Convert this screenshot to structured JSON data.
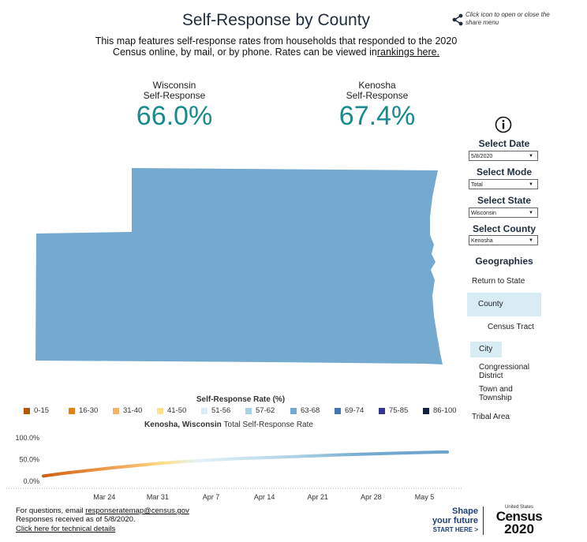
{
  "header": {
    "title": "Self-Response by County",
    "subtitle_text": "This map features self-response rates from households that responded to the 2020 Census online, by mail, or by phone. Rates can be viewed in",
    "rankings_link": "rankings here.",
    "share_note": "Click icon to open or close the share menu"
  },
  "stats": {
    "state": {
      "name": "Wisconsin",
      "label": "Self-Response",
      "value": "66.0%"
    },
    "county": {
      "name": "Kenosha",
      "label": "Self-Response",
      "value": "67.4%"
    }
  },
  "map": {
    "fill_color": "#74aad0",
    "rate_percent": 67.4
  },
  "controls": {
    "date": {
      "label": "Select Date",
      "value": "5/8/2020"
    },
    "mode": {
      "label": "Select Mode",
      "value": "Total"
    },
    "state": {
      "label": "Select State",
      "value": "Wisconsin"
    },
    "county": {
      "label": "Select County",
      "value": "Kenosha"
    }
  },
  "geographies": {
    "heading": "Geographies",
    "items": [
      "Return to State",
      "County",
      "Census Tract",
      "City",
      "Congressional District",
      "Town and Township",
      "Tribal Area"
    ]
  },
  "legend": {
    "title": "Self-Response Rate (%)",
    "items": [
      {
        "label": "0-15",
        "color": "#b35806"
      },
      {
        "label": "16-30",
        "color": "#e08214"
      },
      {
        "label": "31-40",
        "color": "#f5b465"
      },
      {
        "label": "41-50",
        "color": "#fce08a"
      },
      {
        "label": "51-56",
        "color": "#d8edf5"
      },
      {
        "label": "57-62",
        "color": "#a6d0e4"
      },
      {
        "label": "63-68",
        "color": "#74aad0"
      },
      {
        "label": "69-74",
        "color": "#4575b4"
      },
      {
        "label": "75-85",
        "color": "#313695"
      },
      {
        "label": "86-100",
        "color": "#14213d"
      }
    ]
  },
  "chart_data": {
    "type": "line",
    "title_bold": "Kenosha, Wisconsin",
    "title_rest": "Total Self-Response Rate",
    "yticks": [
      "100.0%",
      "50.0%",
      "0.0%"
    ],
    "ylim": [
      0,
      100
    ],
    "xticks": [
      "Mar 24",
      "Mar 31",
      "Apr 7",
      "Apr 14",
      "Apr 21",
      "Apr 28",
      "May 5"
    ],
    "x_start": "2020-03-16",
    "x_end": "2020-05-08",
    "series": [
      {
        "x": [
          "2020-03-16",
          "2020-03-19",
          "2020-03-22",
          "2020-03-25",
          "2020-03-28",
          "2020-03-31",
          "2020-04-03",
          "2020-04-06",
          "2020-04-09",
          "2020-04-12",
          "2020-04-15",
          "2020-04-18",
          "2020-04-21",
          "2020-04-24",
          "2020-04-27",
          "2020-04-30",
          "2020-05-03",
          "2020-05-06",
          "2020-05-08"
        ],
        "values": [
          12,
          19,
          25,
          31,
          36,
          41,
          45,
          48,
          51,
          53,
          55,
          57,
          59,
          61,
          62.5,
          64,
          65.5,
          66.8,
          67.4
        ]
      }
    ]
  },
  "footer": {
    "questions_prefix": "For questions, email ",
    "email": "responseratemap@census.gov",
    "received": "Responses received as of 5/8/2020.",
    "tech_link": "Click here for technical details"
  },
  "logo": {
    "shape": "Shape",
    "future": "your future",
    "start": "START HERE >",
    "united_states": "United States",
    "census": "Census",
    "year": "2020"
  }
}
